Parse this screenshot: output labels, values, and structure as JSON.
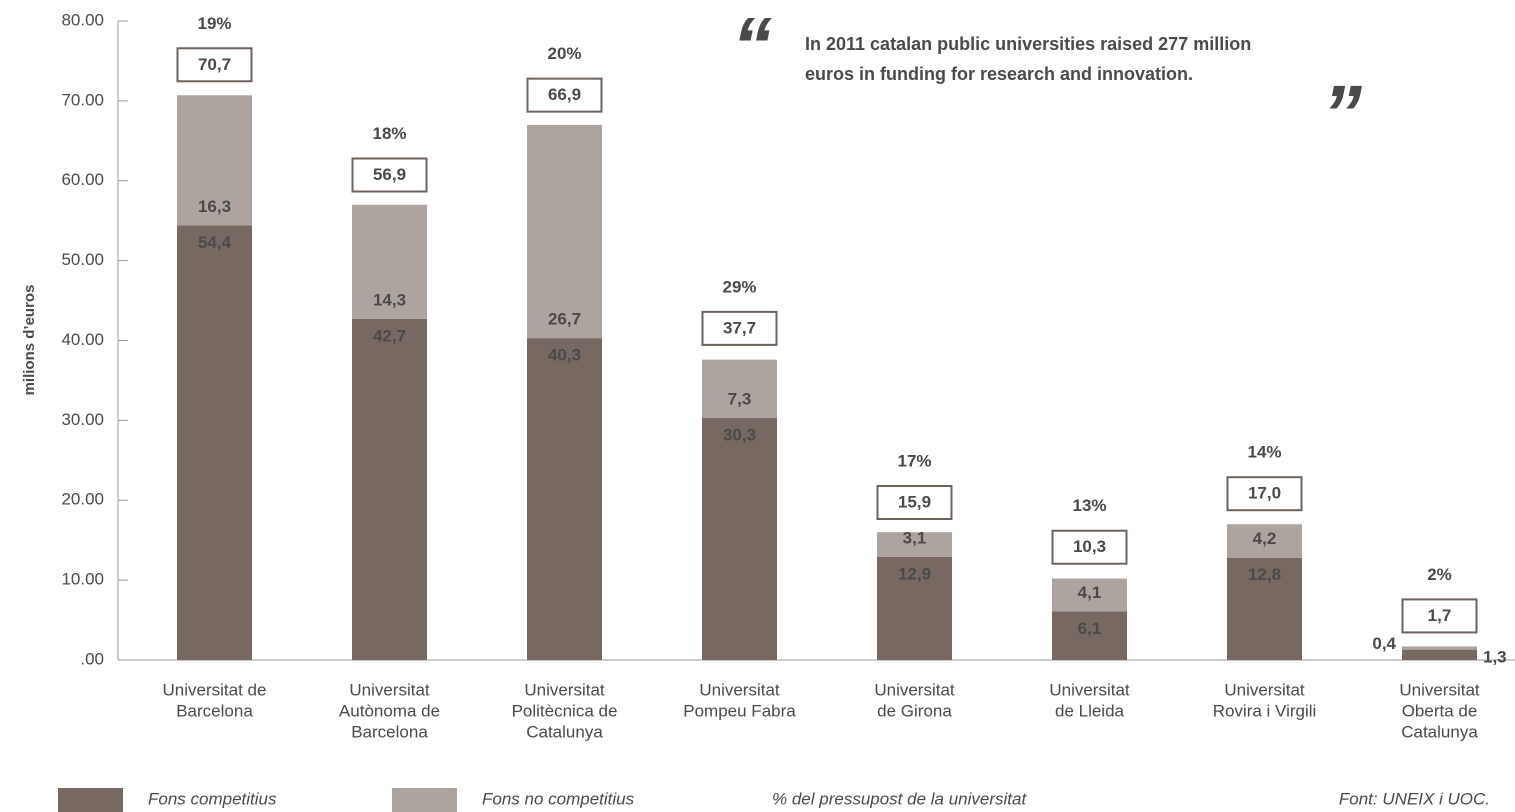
{
  "chart_data": {
    "type": "stacked_bar",
    "y_label": "milions d’euros",
    "categories": [
      [
        "Universitat de",
        "Barcelona"
      ],
      [
        "Universitat",
        "Autònoma de",
        "Barcelona"
      ],
      [
        "Universitat",
        "Politècnica de",
        "Catalunya"
      ],
      [
        "Universitat",
        "Pompeu Fabra"
      ],
      [
        "Universitat",
        "de Girona"
      ],
      [
        "Universitat",
        "de Lleida"
      ],
      [
        "Universitat",
        "Rovira i Virgili"
      ],
      [
        "Universitat",
        "Oberta de",
        "Catalunya"
      ]
    ],
    "series": [
      {
        "name": "Fons competitius",
        "color": "#776961",
        "values": [
          54.4,
          42.7,
          40.3,
          30.3,
          12.9,
          6.1,
          12.8,
          1.3
        ],
        "value_labels": [
          "54,4",
          "42,7",
          "40,3",
          "30,3",
          "12,9",
          "6,1",
          "12,8",
          "1,3"
        ]
      },
      {
        "name": "Fons no competitius",
        "color": "#ada49f",
        "values": [
          16.3,
          14.3,
          26.7,
          7.3,
          3.1,
          4.1,
          4.2,
          0.4
        ],
        "value_labels": [
          "16,3",
          "14,3",
          "26,7",
          "7,3",
          "3,1",
          "4,1",
          "4,2",
          "0,4"
        ]
      }
    ],
    "totals": [
      70.7,
      56.9,
      66.9,
      37.7,
      15.9,
      10.3,
      17.0,
      1.7
    ],
    "total_labels": [
      "70,7",
      "56,9",
      "66,9",
      "37,7",
      "15,9",
      "10,3",
      "17,0",
      "1,7"
    ],
    "percent_name": "% del pressupost de la universitat",
    "percent": [
      19,
      18,
      20,
      29,
      17,
      13,
      14,
      2
    ],
    "percent_labels": [
      "19%",
      "18%",
      "20%",
      "29%",
      "17%",
      "13%",
      "14%",
      "2%"
    ],
    "ylim": [
      0,
      80
    ],
    "yticks": [
      {
        "value": 0,
        "label": ".00"
      },
      {
        "value": 10,
        "label": "10.00"
      },
      {
        "value": 20,
        "label": "20.00"
      },
      {
        "value": 30,
        "label": "30.00"
      },
      {
        "value": 40,
        "label": "40.00"
      },
      {
        "value": 50,
        "label": "50.00"
      },
      {
        "value": 60,
        "label": "60.00"
      },
      {
        "value": 70,
        "label": "70.00"
      },
      {
        "value": 80,
        "label": "80.00"
      }
    ],
    "quote": {
      "open": "“",
      "close": "”",
      "lines": [
        "In 2011 catalan public universities raised 277 million",
        "euros in funding for research and innovation."
      ]
    },
    "source": "Font: UNEIX i UOC."
  }
}
